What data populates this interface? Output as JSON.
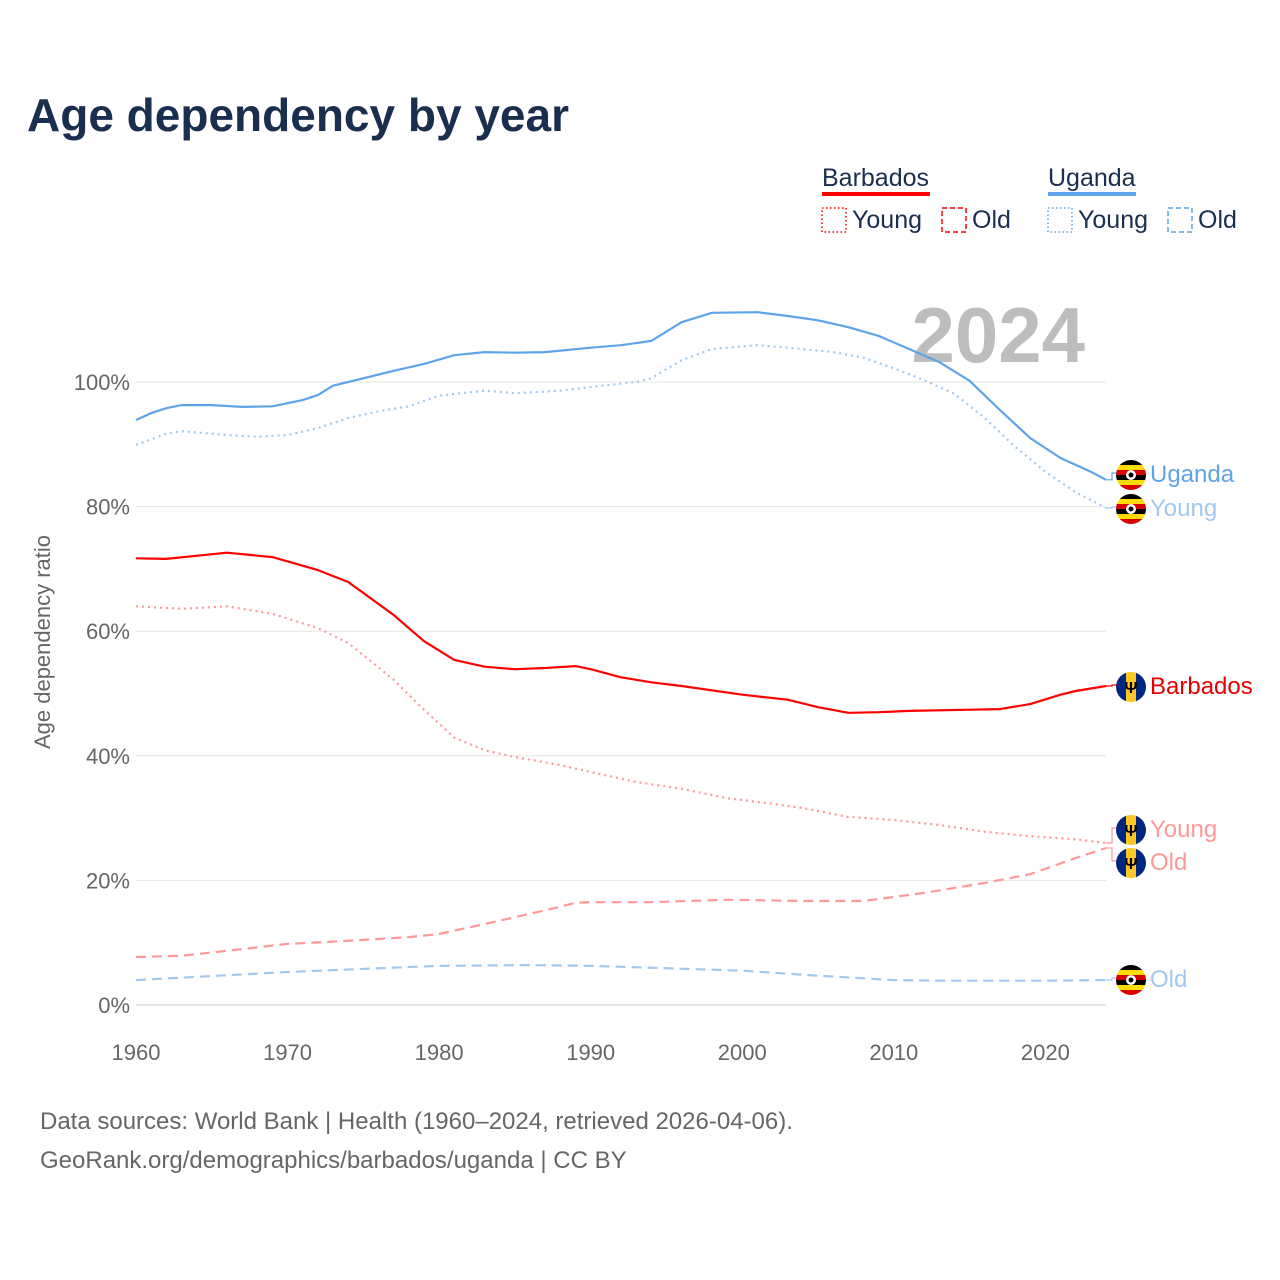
{
  "title": "Age dependency by year",
  "footer": {
    "line1": "Data sources: World Bank | Health (1960–2024, retrieved 2026-04-06).",
    "line2": "GeoRank.org/demographics/barbados/uganda | CC BY"
  },
  "legend": {
    "groups": [
      {
        "name": "Barbados",
        "color": "#ff0000",
        "items": [
          "Young",
          "Old"
        ]
      },
      {
        "name": "Uganda",
        "color": "#5fa3e8",
        "items": [
          "Young",
          "Old"
        ]
      }
    ]
  },
  "chart_data": {
    "type": "line",
    "title": "Age dependency by year",
    "year_watermark": "2024",
    "xlabel": "",
    "ylabel": "Age dependency ratio",
    "xlim": [
      1960,
      2024
    ],
    "ylim": [
      0,
      110
    ],
    "xticks": [
      "1960",
      "1970",
      "1980",
      "1990",
      "2000",
      "2010",
      "2020"
    ],
    "yticks": [
      "0%",
      "20%",
      "40%",
      "60%",
      "80%",
      "100%"
    ],
    "grid": true,
    "series": [
      {
        "name": "Uganda",
        "end_label": "Uganda",
        "country": "Uganda",
        "style": "solid",
        "color": "#5fa3e8",
        "points": [
          [
            1960,
            93.9
          ],
          [
            1961,
            95.0
          ],
          [
            1962,
            95.8
          ],
          [
            1963,
            96.3
          ],
          [
            1965,
            96.3
          ],
          [
            1967,
            96.0
          ],
          [
            1969,
            96.1
          ],
          [
            1971,
            97.1
          ],
          [
            1972,
            97.9
          ],
          [
            1973,
            99.4
          ],
          [
            1975,
            100.6
          ],
          [
            1977,
            101.8
          ],
          [
            1979,
            102.9
          ],
          [
            1981,
            104.3
          ],
          [
            1983,
            104.8
          ],
          [
            1985,
            104.7
          ],
          [
            1987,
            104.8
          ],
          [
            1990,
            105.5
          ],
          [
            1992,
            105.9
          ],
          [
            1994,
            106.6
          ],
          [
            1996,
            109.6
          ],
          [
            1998,
            111.1
          ],
          [
            2001,
            111.2
          ],
          [
            2003,
            110.6
          ],
          [
            2005,
            109.9
          ],
          [
            2007,
            108.8
          ],
          [
            2009,
            107.4
          ],
          [
            2011,
            105.3
          ],
          [
            2013,
            103.2
          ],
          [
            2015,
            100.2
          ],
          [
            2017,
            95.5
          ],
          [
            2019,
            91.0
          ],
          [
            2021,
            87.8
          ],
          [
            2023,
            85.6
          ],
          [
            2024,
            84.3
          ]
        ]
      },
      {
        "name": "Uganda Young",
        "end_label": "Young",
        "country": "Uganda",
        "style": "dotted",
        "color": "#a3c8f0",
        "points": [
          [
            1960,
            89.9
          ],
          [
            1962,
            91.7
          ],
          [
            1963,
            92.1
          ],
          [
            1966,
            91.5
          ],
          [
            1968,
            91.2
          ],
          [
            1970,
            91.5
          ],
          [
            1972,
            92.6
          ],
          [
            1974,
            94.2
          ],
          [
            1976,
            95.3
          ],
          [
            1978,
            96.1
          ],
          [
            1980,
            97.8
          ],
          [
            1983,
            98.6
          ],
          [
            1985,
            98.2
          ],
          [
            1988,
            98.6
          ],
          [
            1990,
            99.2
          ],
          [
            1993,
            100.0
          ],
          [
            1994,
            100.6
          ],
          [
            1996,
            103.5
          ],
          [
            1998,
            105.3
          ],
          [
            2001,
            105.9
          ],
          [
            2003,
            105.5
          ],
          [
            2006,
            104.8
          ],
          [
            2008,
            103.9
          ],
          [
            2010,
            102.2
          ],
          [
            2012,
            100.3
          ],
          [
            2014,
            98.1
          ],
          [
            2016,
            94.2
          ],
          [
            2018,
            89.6
          ],
          [
            2020,
            85.6
          ],
          [
            2022,
            82.3
          ],
          [
            2024,
            79.8
          ]
        ]
      },
      {
        "name": "Barbados",
        "end_label": "Barbados",
        "country": "Barbados",
        "style": "solid",
        "color": "#ff0000",
        "points": [
          [
            1960,
            71.7
          ],
          [
            1962,
            71.6
          ],
          [
            1966,
            72.6
          ],
          [
            1969,
            71.9
          ],
          [
            1972,
            69.8
          ],
          [
            1974,
            67.9
          ],
          [
            1977,
            62.6
          ],
          [
            1979,
            58.4
          ],
          [
            1981,
            55.4
          ],
          [
            1983,
            54.3
          ],
          [
            1985,
            53.9
          ],
          [
            1987,
            54.1
          ],
          [
            1989,
            54.4
          ],
          [
            1990,
            53.9
          ],
          [
            1992,
            52.6
          ],
          [
            1994,
            51.8
          ],
          [
            1996,
            51.2
          ],
          [
            2000,
            49.8
          ],
          [
            2003,
            49.0
          ],
          [
            2005,
            47.8
          ],
          [
            2007,
            46.9
          ],
          [
            2009,
            47.0
          ],
          [
            2011,
            47.2
          ],
          [
            2015,
            47.4
          ],
          [
            2017,
            47.5
          ],
          [
            2019,
            48.3
          ],
          [
            2021,
            49.8
          ],
          [
            2022,
            50.4
          ],
          [
            2024,
            51.2
          ]
        ]
      },
      {
        "name": "Barbados Young",
        "end_label": "Young",
        "country": "Barbados",
        "style": "dotted",
        "color": "#ff9999",
        "points": [
          [
            1960,
            64.0
          ],
          [
            1963,
            63.6
          ],
          [
            1966,
            64.0
          ],
          [
            1969,
            62.8
          ],
          [
            1972,
            60.5
          ],
          [
            1974,
            58.1
          ],
          [
            1977,
            52.2
          ],
          [
            1979,
            47.4
          ],
          [
            1981,
            42.9
          ],
          [
            1983,
            40.9
          ],
          [
            1985,
            39.8
          ],
          [
            1988,
            38.5
          ],
          [
            1990,
            37.4
          ],
          [
            1993,
            35.8
          ],
          [
            1996,
            34.7
          ],
          [
            1999,
            33.2
          ],
          [
            2002,
            32.3
          ],
          [
            2004,
            31.6
          ],
          [
            2007,
            30.2
          ],
          [
            2010,
            29.7
          ],
          [
            2013,
            28.9
          ],
          [
            2016,
            27.8
          ],
          [
            2019,
            27.1
          ],
          [
            2022,
            26.6
          ],
          [
            2024,
            26.0
          ]
        ]
      },
      {
        "name": "Barbados Old",
        "end_label": "Old",
        "country": "Barbados",
        "style": "dashed",
        "color": "#ff9999",
        "points": [
          [
            1960,
            7.7
          ],
          [
            1963,
            7.9
          ],
          [
            1966,
            8.7
          ],
          [
            1970,
            9.8
          ],
          [
            1974,
            10.3
          ],
          [
            1978,
            10.9
          ],
          [
            1980,
            11.4
          ],
          [
            1983,
            13.0
          ],
          [
            1987,
            15.2
          ],
          [
            1989,
            16.4
          ],
          [
            1990,
            16.5
          ],
          [
            1994,
            16.5
          ],
          [
            1999,
            16.9
          ],
          [
            2004,
            16.7
          ],
          [
            2008,
            16.7
          ],
          [
            2012,
            18.0
          ],
          [
            2016,
            19.6
          ],
          [
            2019,
            21.0
          ],
          [
            2022,
            23.6
          ],
          [
            2024,
            25.2
          ]
        ]
      },
      {
        "name": "Uganda Old",
        "end_label": "Old",
        "country": "Uganda",
        "style": "dashed",
        "color": "#a3c8f0",
        "points": [
          [
            1960,
            4.0
          ],
          [
            1970,
            5.3
          ],
          [
            1980,
            6.3
          ],
          [
            1986,
            6.4
          ],
          [
            1990,
            6.3
          ],
          [
            2000,
            5.5
          ],
          [
            2005,
            4.7
          ],
          [
            2010,
            4.0
          ],
          [
            2013,
            3.9
          ],
          [
            2020,
            3.9
          ],
          [
            2024,
            4.0
          ]
        ]
      }
    ]
  }
}
